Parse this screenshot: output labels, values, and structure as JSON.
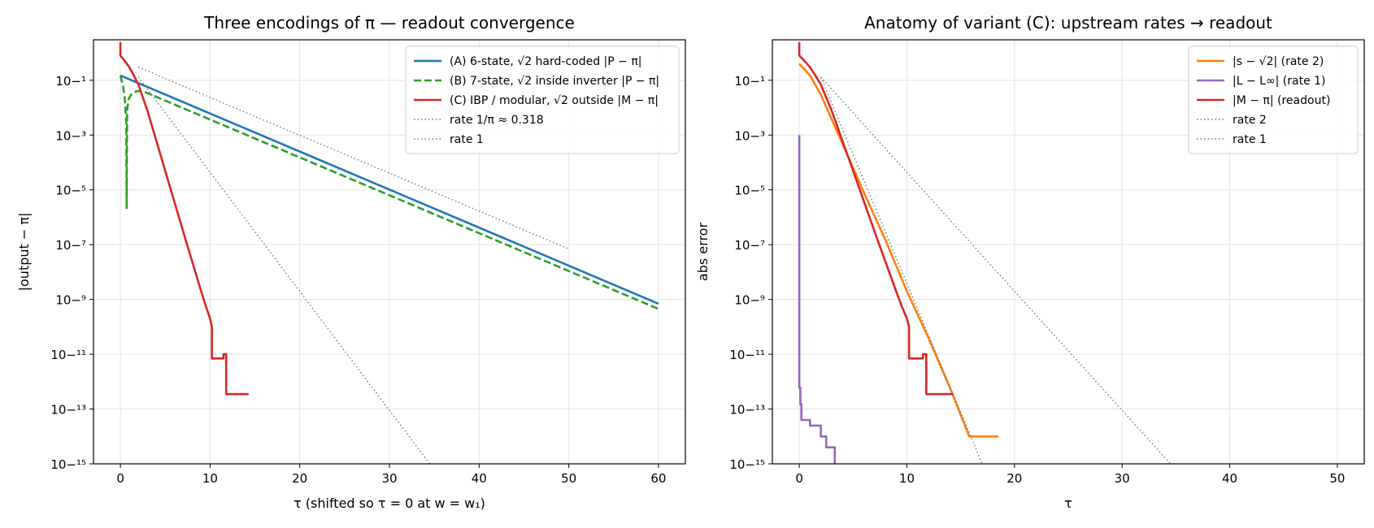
{
  "chart_data": [
    {
      "type": "line",
      "title": "Three encodings of π — readout convergence",
      "xlabel": "τ  (shifted so τ = 0 at w = w₁)",
      "ylabel": "|output − π|",
      "yscale": "log",
      "xlim": [
        -3,
        63
      ],
      "ylim": [
        1e-15,
        3
      ],
      "xticks": [
        0,
        10,
        20,
        30,
        40,
        50,
        60
      ],
      "yticks": [
        -15,
        -13,
        -11,
        -9,
        -7,
        -5,
        -3,
        -1
      ],
      "grid": true,
      "legend_position": "top-right",
      "series": [
        {
          "name": "(A)  6-state, √2 hard-coded   |P − π|",
          "color": "#1f77b4",
          "style": "solid",
          "x": [
            0,
            60
          ],
          "y": [
            0.15,
            7e-10
          ]
        },
        {
          "name": "(B)  7-state, √2 inside inverter   |P − π|",
          "color": "#2ca02c",
          "style": "dashed",
          "x": [
            0,
            0.3,
            0.5,
            0.65,
            0.7,
            0.75,
            0.9,
            1.2,
            1.8,
            2.5,
            60
          ],
          "y": [
            0.15,
            0.06,
            0.02,
            0.003,
            2e-06,
            0.008,
            0.02,
            0.03,
            0.04,
            0.04,
            4.5e-10
          ]
        },
        {
          "name": "(C)  IBP / modular, √2 outside   |M − π|",
          "color": "#d62728",
          "style": "solid",
          "x": [
            0,
            0,
            0.5,
            1,
            1.5,
            2,
            3,
            5,
            7,
            9,
            9.5,
            10,
            10.2,
            10.2,
            11.5,
            11.5,
            11.8,
            11.8,
            14.3
          ],
          "y": [
            2.5,
            0.8,
            0.5,
            0.3,
            0.15,
            0.07,
            0.008,
            5e-05,
            3e-07,
            2e-09,
            6e-10,
            2e-10,
            1e-10,
            7e-12,
            7e-12,
            1e-11,
            1e-11,
            3.5e-13,
            3.5e-13
          ]
        },
        {
          "name": "rate 1/π ≈ 0.318",
          "color": "#777777",
          "style": "dotted",
          "x": [
            2,
            50
          ],
          "y": [
            0.3,
            7e-08
          ]
        },
        {
          "name": "rate 1",
          "color": "#777777",
          "style": "dotted",
          "x": [
            2,
            34.5
          ],
          "y": [
            0.13,
            1e-15
          ]
        }
      ]
    },
    {
      "type": "line",
      "title": "Anatomy of variant (C):  upstream rates → readout",
      "xlabel": "τ",
      "ylabel": "abs error",
      "yscale": "log",
      "xlim": [
        -2.5,
        52.5
      ],
      "ylim": [
        1e-15,
        3
      ],
      "xticks": [
        0,
        10,
        20,
        30,
        40,
        50
      ],
      "yticks": [
        -15,
        -13,
        -11,
        -9,
        -7,
        -5,
        -3,
        -1
      ],
      "grid": true,
      "legend_position": "top-right",
      "series": [
        {
          "name": "|s − √2|  (rate 2)",
          "color": "#ff7f0e",
          "style": "solid",
          "x": [
            0,
            1,
            2,
            4,
            6,
            8,
            10,
            12,
            14,
            15.8,
            18.5
          ],
          "y": [
            0.4,
            0.15,
            0.03,
            0.0005,
            8e-06,
            1.5e-07,
            2e-09,
            4e-11,
            6e-13,
            1e-14,
            1e-14
          ]
        },
        {
          "name": "|L − L∞|  (rate 1)",
          "color": "#9467bd",
          "style": "solid",
          "x": [
            0,
            0,
            0.1,
            0.1,
            0.2,
            0.2,
            1.0,
            1.0,
            2.0,
            2.0,
            2.5,
            2.5,
            3.3,
            3.3
          ],
          "y": [
            0.001,
            6e-13,
            6e-13,
            1.5e-13,
            1.5e-13,
            4e-14,
            4e-14,
            2.5e-14,
            2.5e-14,
            1e-14,
            1e-14,
            4e-15,
            4e-15,
            1e-15
          ]
        },
        {
          "name": "|M − π|  (readout)",
          "color": "#d62728",
          "style": "solid",
          "x": [
            0,
            0,
            0.5,
            1,
            1.5,
            2,
            3,
            5,
            7,
            9,
            9.5,
            10,
            10.2,
            10.2,
            11.5,
            11.5,
            11.8,
            11.8,
            14.3
          ],
          "y": [
            2.5,
            0.8,
            0.5,
            0.3,
            0.15,
            0.07,
            0.008,
            5e-05,
            3e-07,
            2e-09,
            6e-10,
            2e-10,
            1e-10,
            7e-12,
            7e-12,
            1e-11,
            1e-11,
            3.5e-13,
            3.5e-13
          ]
        },
        {
          "name": "rate 2",
          "color": "#777777",
          "style": "dotted",
          "x": [
            2,
            17
          ],
          "y": [
            0.13,
            1e-15
          ]
        },
        {
          "name": "rate 1",
          "color": "#777777",
          "style": "dotted",
          "x": [
            2,
            34.5
          ],
          "y": [
            0.13,
            1e-15
          ]
        }
      ]
    }
  ]
}
